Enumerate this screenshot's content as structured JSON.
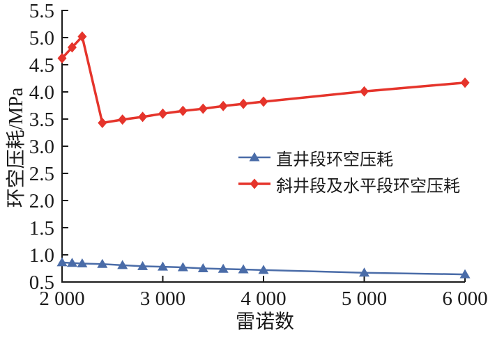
{
  "chart_data": {
    "type": "line",
    "title": "",
    "grid": false,
    "legend_position": "center",
    "axis_color": "#1a1a1a",
    "x_axis": {
      "title": "雷诺数",
      "range": [
        2000,
        6000
      ],
      "tick_values": [
        2000,
        3000,
        4000,
        5000,
        6000
      ],
      "tick_labels": [
        "2 000",
        "3 000",
        "4 000",
        "5 000",
        "6 000"
      ]
    },
    "y_axis": {
      "title": "环空压耗/MPa",
      "range": [
        0.5,
        5.5
      ],
      "tick_values": [
        0.5,
        1.0,
        1.5,
        2.0,
        2.5,
        3.0,
        3.5,
        4.0,
        4.5,
        5.0,
        5.5
      ],
      "tick_labels": [
        "0.5",
        "1.0",
        "1.5",
        "2.0",
        "2.5",
        "3.0",
        "3.5",
        "4.0",
        "4.5",
        "5.0",
        "5.5"
      ]
    },
    "x": [
      2000,
      2100,
      2200,
      2400,
      2600,
      2800,
      3000,
      3200,
      3400,
      3600,
      3800,
      4000,
      5000,
      6000
    ],
    "series": [
      {
        "name": "直井段环空压耗",
        "color": "#4a6ca8",
        "marker": "triangle",
        "line_width": 2.5,
        "values": [
          0.86,
          0.85,
          0.84,
          0.83,
          0.81,
          0.79,
          0.78,
          0.77,
          0.75,
          0.74,
          0.73,
          0.72,
          0.67,
          0.64
        ]
      },
      {
        "name": "斜井段及水平段环空压耗",
        "color": "#e5342b",
        "marker": "diamond",
        "line_width": 3.5,
        "values": [
          4.62,
          4.82,
          5.02,
          3.43,
          3.49,
          3.54,
          3.6,
          3.65,
          3.69,
          3.74,
          3.78,
          3.82,
          4.01,
          4.17
        ]
      }
    ]
  }
}
